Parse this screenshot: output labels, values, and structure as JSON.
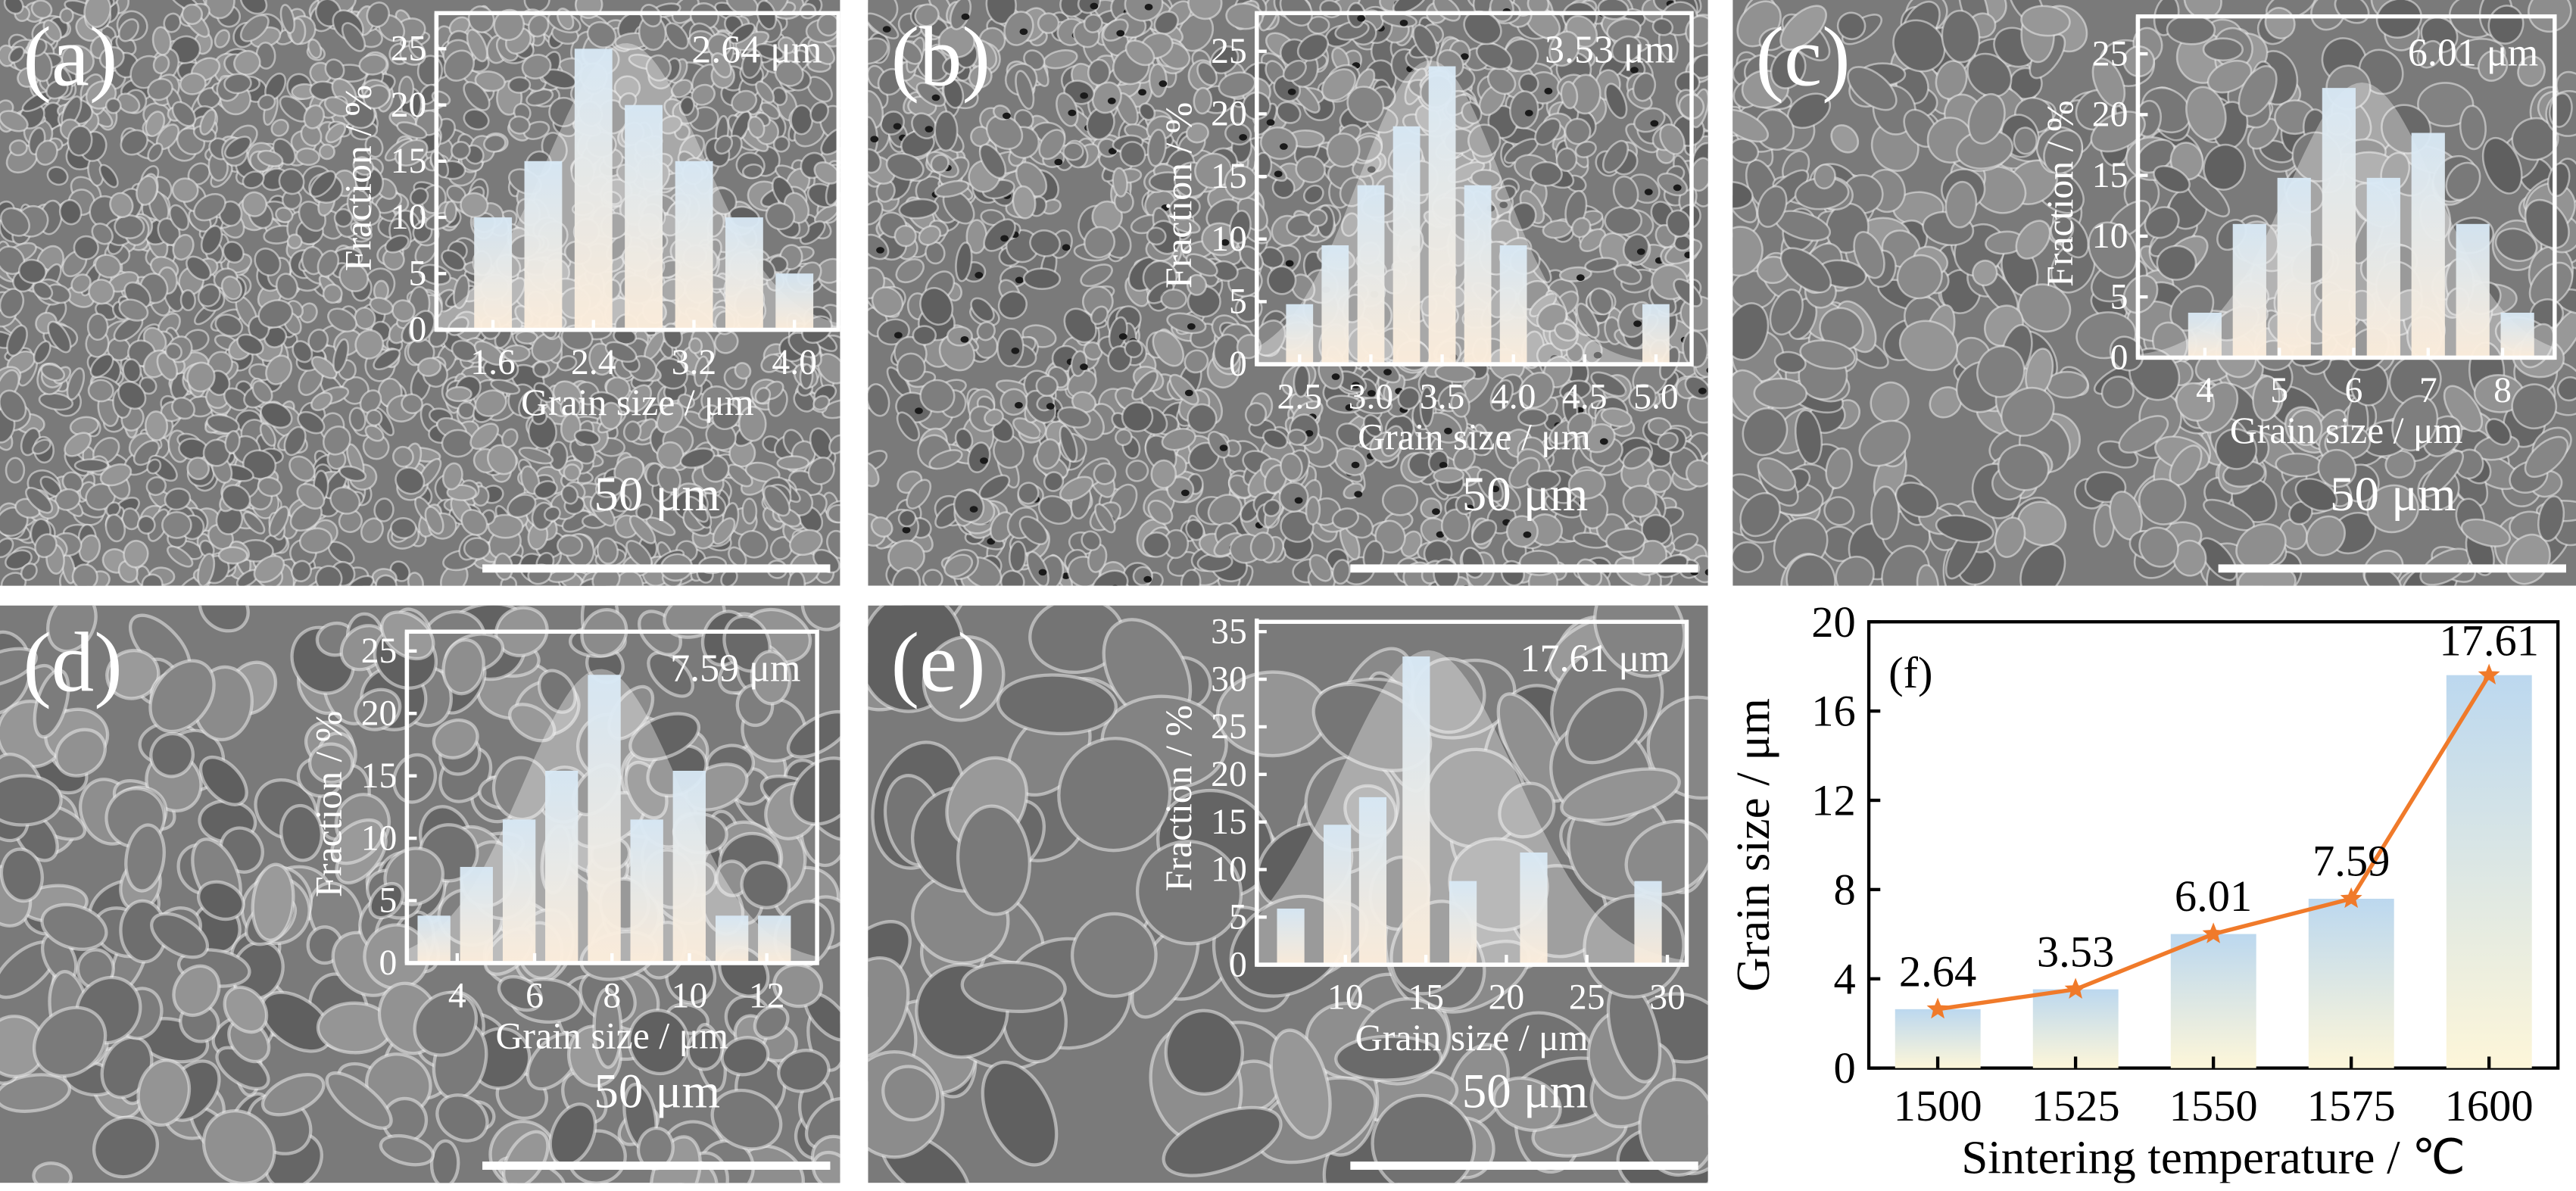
{
  "sem_panels": [
    {
      "label": "(a)",
      "scale_bar": "50 μm",
      "mean": "2.64 μm",
      "xlabel": "Grain size / μm",
      "ylabel": "Fraction / %",
      "yticks": [
        0,
        5,
        10,
        15,
        20,
        25
      ],
      "ylim": [
        0,
        27
      ],
      "xticks": [
        1.6,
        2.4,
        3.2,
        4.0
      ],
      "xtick_labels": [
        "1.6",
        "2.4",
        "3.2",
        "4.0"
      ],
      "xlim": [
        1.15,
        4.35
      ],
      "bars": [
        {
          "x": 1.6,
          "y": 10
        },
        {
          "x": 2.0,
          "y": 15
        },
        {
          "x": 2.4,
          "y": 25
        },
        {
          "x": 2.8,
          "y": 20
        },
        {
          "x": 3.2,
          "y": 15
        },
        {
          "x": 3.6,
          "y": 10
        },
        {
          "x": 4.0,
          "y": 5
        }
      ],
      "bar_width": 0.3
    },
    {
      "label": "(b)",
      "scale_bar": "50 μm",
      "mean": "3.53 μm",
      "xlabel": "Grain size / μm",
      "ylabel": "Fraction / %",
      "yticks": [
        0,
        5,
        10,
        15,
        20,
        25
      ],
      "ylim": [
        0,
        27
      ],
      "xticks": [
        2.5,
        3.0,
        3.5,
        4.0,
        4.5,
        5.0
      ],
      "xtick_labels": [
        "2.5",
        "3.0",
        "3.5",
        "4.0",
        "4.5",
        "5.0"
      ],
      "xlim": [
        2.2,
        5.25
      ],
      "bars": [
        {
          "x": 2.5,
          "y": 4.8
        },
        {
          "x": 2.75,
          "y": 9.5
        },
        {
          "x": 3.0,
          "y": 14.3
        },
        {
          "x": 3.25,
          "y": 19
        },
        {
          "x": 3.5,
          "y": 23.8
        },
        {
          "x": 3.75,
          "y": 14.3
        },
        {
          "x": 4.0,
          "y": 9.5
        },
        {
          "x": 5.0,
          "y": 4.8
        }
      ],
      "bar_width": 0.19
    },
    {
      "label": "(c)",
      "scale_bar": "50 μm",
      "mean": "6.01 μm",
      "xlabel": "Grain size / μm",
      "ylabel": "Fraction / %",
      "yticks": [
        0,
        5,
        10,
        15,
        20,
        25
      ],
      "ylim": [
        0,
        27
      ],
      "xticks": [
        4,
        5,
        6,
        7,
        8
      ],
      "xtick_labels": [
        "4",
        "5",
        "6",
        "7",
        "8"
      ],
      "xlim": [
        3.1,
        8.7
      ],
      "bars": [
        {
          "x": 4,
          "y": 3.7
        },
        {
          "x": 4.6,
          "y": 11
        },
        {
          "x": 5.2,
          "y": 14.8
        },
        {
          "x": 5.8,
          "y": 22.2
        },
        {
          "x": 6.4,
          "y": 14.8
        },
        {
          "x": 7.0,
          "y": 18.5
        },
        {
          "x": 7.6,
          "y": 11
        },
        {
          "x": 8.2,
          "y": 3.7
        }
      ],
      "bar_width": 0.45
    },
    {
      "label": "(d)",
      "scale_bar": "50 μm",
      "mean": "7.59 μm",
      "xlabel": "Grain size / μm",
      "ylabel": "Fraction / %",
      "yticks": [
        0,
        5,
        10,
        15,
        20,
        25
      ],
      "ylim": [
        0,
        25.5
      ],
      "xticks": [
        4,
        6,
        8,
        10,
        12
      ],
      "xtick_labels": [
        "4",
        "6",
        "8",
        "10",
        "12"
      ],
      "xlim": [
        2.7,
        13.3
      ],
      "bars": [
        {
          "x": 3.4,
          "y": 3.8
        },
        {
          "x": 4.5,
          "y": 7.7
        },
        {
          "x": 5.6,
          "y": 11.5
        },
        {
          "x": 6.7,
          "y": 15.4
        },
        {
          "x": 7.8,
          "y": 23.1
        },
        {
          "x": 8.9,
          "y": 11.5
        },
        {
          "x": 10.0,
          "y": 15.4
        },
        {
          "x": 11.1,
          "y": 3.8
        },
        {
          "x": 12.2,
          "y": 3.8
        }
      ],
      "bar_width": 0.85
    },
    {
      "label": "(e)",
      "scale_bar": "50 μm",
      "mean": "17.61 μm",
      "xlabel": "Grain size / μm",
      "ylabel": "Fraction / %",
      "yticks": [
        0,
        5,
        10,
        15,
        20,
        25,
        30,
        35
      ],
      "ylim": [
        0,
        35
      ],
      "xticks": [
        10,
        15,
        20,
        25,
        30
      ],
      "xtick_labels": [
        "10",
        "15",
        "20",
        "25",
        "30"
      ],
      "xlim": [
        4.5,
        31.2
      ],
      "bars": [
        {
          "x": 6.6,
          "y": 5.9
        },
        {
          "x": 9.5,
          "y": 14.7
        },
        {
          "x": 11.7,
          "y": 17.6
        },
        {
          "x": 14.4,
          "y": 32.4
        },
        {
          "x": 17.3,
          "y": 8.8
        },
        {
          "x": 21.7,
          "y": 11.8
        },
        {
          "x": 28.8,
          "y": 8.8
        }
      ],
      "bar_width": 1.7
    }
  ],
  "chart_data": {
    "type": "bar",
    "panel_label": "(f)",
    "categories": [
      "1500",
      "1525",
      "1550",
      "1575",
      "1600"
    ],
    "values": [
      2.64,
      3.53,
      6.01,
      7.59,
      17.61
    ],
    "value_labels": [
      "2.64",
      "3.53",
      "6.01",
      "7.59",
      "17.61"
    ],
    "line_values": [
      2.64,
      3.53,
      6.01,
      7.59,
      17.61
    ],
    "xlabel": "Sintering temperature / ℃",
    "ylabel": "Grain size / μm",
    "ylim": [
      0,
      20
    ],
    "yticks": [
      0,
      4,
      8,
      12,
      16,
      20
    ],
    "grid": false,
    "line_color": "#f07a2a",
    "bar_top_color": "#bcd8ef",
    "bar_bottom_color": "#fdf6d9"
  },
  "colors": {
    "sem_base": "#7a7a7a",
    "inset_frame": "#ffffff",
    "inset_bar_top": "#d8e9f6",
    "inset_bar_bottom": "#fdeedc"
  }
}
